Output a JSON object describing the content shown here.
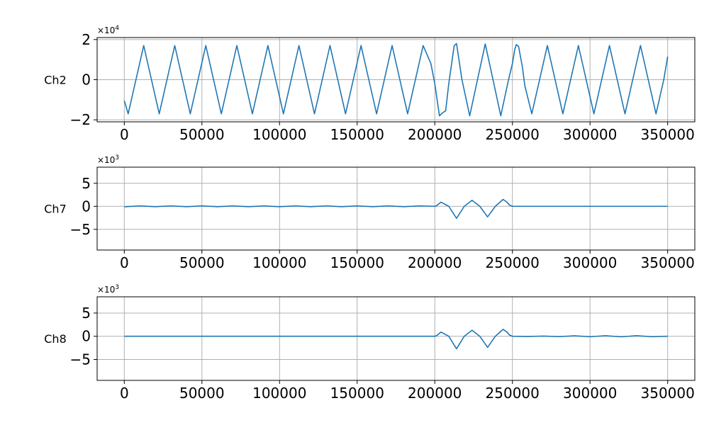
{
  "chart_data": [
    {
      "type": "line",
      "ylabel": "Ch2",
      "offset_text": {
        "base": "×10",
        "exponent": "4"
      },
      "xlim": [
        -17500,
        367500
      ],
      "ylim": [
        -2.1,
        2.1
      ],
      "xticks": [
        0,
        50000,
        100000,
        150000,
        200000,
        250000,
        300000,
        350000
      ],
      "xtick_labels": [
        "0",
        "50000",
        "100000",
        "150000",
        "200000",
        "250000",
        "300000",
        "350000"
      ],
      "yticks": [
        -2,
        0,
        2
      ],
      "ytick_labels": [
        "−2",
        "0",
        "2"
      ],
      "grid": true,
      "line_color": "#1f77b4",
      "series": [
        {
          "x": [
            0,
            2500,
            7500,
            12500,
            17500,
            22500,
            27500,
            32500,
            37500,
            42500,
            47500,
            52500,
            57500,
            62500,
            67500,
            72500,
            77500,
            82500,
            87500,
            92500,
            97500,
            102500,
            107500,
            112500,
            117500,
            122500,
            127500,
            132500,
            137500,
            142500,
            147500,
            152500,
            157500,
            162500,
            167500,
            172500,
            177500,
            182500,
            187500,
            192500,
            197500,
            200000,
            201500,
            203000,
            205000,
            207000,
            209000,
            212500,
            214000,
            217500,
            222500,
            227500,
            232500,
            237500,
            242500,
            247500,
            250000,
            251500,
            252500,
            254000,
            256500,
            258000,
            262500,
            267500,
            272500,
            277500,
            282500,
            287500,
            292500,
            297500,
            302500,
            307500,
            312500,
            317500,
            322500,
            327500,
            332500,
            337500,
            342500,
            347500,
            350000
          ],
          "y": [
            -1.05,
            -1.7,
            0,
            1.7,
            0,
            -1.7,
            0,
            1.7,
            0,
            -1.7,
            0,
            1.7,
            0,
            -1.7,
            0,
            1.7,
            0,
            -1.7,
            0,
            1.7,
            0,
            -1.7,
            0,
            1.7,
            0,
            -1.7,
            0,
            1.7,
            0,
            -1.7,
            0,
            1.7,
            0,
            -1.7,
            0,
            1.7,
            0,
            -1.7,
            0,
            1.7,
            0.8,
            -0.2,
            -1.0,
            -1.8,
            -1.65,
            -1.55,
            -0.2,
            1.7,
            1.8,
            0,
            -1.8,
            0,
            1.78,
            0,
            -1.8,
            0,
            0.8,
            1.5,
            1.75,
            1.65,
            0.6,
            -0.3,
            -1.7,
            0,
            1.7,
            0,
            -1.7,
            0,
            1.7,
            0,
            -1.7,
            0,
            1.7,
            0,
            -1.7,
            0,
            1.7,
            0,
            -1.7,
            0,
            1.15
          ]
        }
      ]
    },
    {
      "type": "line",
      "ylabel": "Ch7",
      "offset_text": {
        "base": "×10",
        "exponent": "3"
      },
      "xlim": [
        -17500,
        367500
      ],
      "ylim": [
        -9.5,
        8.5
      ],
      "xticks": [
        0,
        50000,
        100000,
        150000,
        200000,
        250000,
        300000,
        350000
      ],
      "xtick_labels": [
        "0",
        "50000",
        "100000",
        "150000",
        "200000",
        "250000",
        "300000",
        "350000"
      ],
      "yticks": [
        -5,
        0,
        5
      ],
      "ytick_labels": [
        "−5",
        "0",
        "5"
      ],
      "grid": true,
      "line_color": "#1f77b4",
      "series": [
        {
          "x": [
            0,
            10000,
            20000,
            30000,
            40000,
            50000,
            60000,
            70000,
            80000,
            90000,
            100000,
            110000,
            120000,
            130000,
            140000,
            150000,
            160000,
            170000,
            180000,
            190000,
            200000,
            201000,
            204000,
            209000,
            214000,
            219000,
            224000,
            229000,
            234000,
            239000,
            244000,
            246500,
            248000,
            250000,
            260000,
            300000,
            350000
          ],
          "y": [
            -0.1,
            0.08,
            -0.08,
            0.08,
            -0.08,
            0.08,
            -0.08,
            0.08,
            -0.08,
            0.08,
            -0.08,
            0.08,
            -0.08,
            0.08,
            -0.08,
            0.08,
            -0.08,
            0.08,
            -0.08,
            0.08,
            0,
            0.1,
            0.9,
            0,
            -2.6,
            0,
            1.3,
            0,
            -2.3,
            0,
            1.5,
            0.9,
            0.3,
            0,
            0,
            0,
            0
          ]
        }
      ]
    },
    {
      "type": "line",
      "ylabel": "Ch8",
      "offset_text": {
        "base": "×10",
        "exponent": "3"
      },
      "xlim": [
        -17500,
        367500
      ],
      "ylim": [
        -9.5,
        8.5
      ],
      "xticks": [
        0,
        50000,
        100000,
        150000,
        200000,
        250000,
        300000,
        350000
      ],
      "xtick_labels": [
        "0",
        "50000",
        "100000",
        "150000",
        "200000",
        "250000",
        "300000",
        "350000"
      ],
      "yticks": [
        -5,
        0,
        5
      ],
      "ytick_labels": [
        "−5",
        "0",
        "5"
      ],
      "grid": true,
      "line_color": "#1f77b4",
      "series": [
        {
          "x": [
            0,
            100000,
            200000,
            201000,
            204000,
            209000,
            214000,
            219000,
            224000,
            229000,
            234000,
            239000,
            244000,
            246500,
            248000,
            250000,
            260000,
            270000,
            280000,
            290000,
            300000,
            310000,
            320000,
            330000,
            340000,
            350000
          ],
          "y": [
            0,
            0,
            0,
            0.1,
            0.9,
            0,
            -2.7,
            0,
            1.3,
            0,
            -2.4,
            0,
            1.5,
            0.9,
            0.3,
            0,
            -0.05,
            0.05,
            -0.08,
            0.1,
            -0.1,
            0.12,
            -0.12,
            0.12,
            -0.1,
            0
          ]
        }
      ]
    }
  ]
}
